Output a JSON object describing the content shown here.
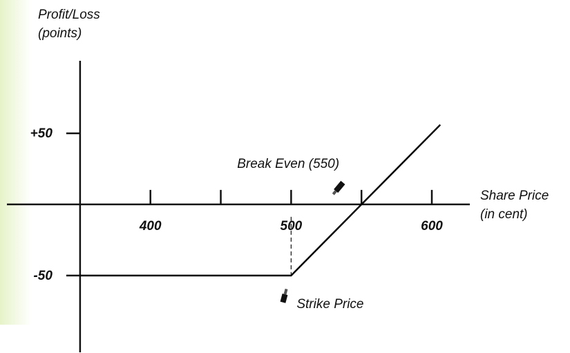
{
  "chart_data": {
    "type": "line",
    "ylabel": [
      "Profit/Loss",
      "(points)"
    ],
    "xlabel": [
      "Share Price",
      "(in cent)"
    ],
    "series": [
      {
        "color": "#000000",
        "x": [
          350,
          500,
          606
        ],
        "values": [
          -50,
          -50,
          56
        ]
      }
    ],
    "xlim": [
      298,
      627
    ],
    "ylim": [
      -104,
      101
    ],
    "xticks": [
      400,
      {
        "value": 450,
        "label": null
      },
      500,
      {
        "value": 550,
        "label": null
      },
      600
    ],
    "yticks": [
      {
        "value": 50,
        "label": "+50"
      },
      -50
    ],
    "annotations": [
      {
        "text": "Break Even (550)",
        "x": 550,
        "y": 0
      },
      {
        "text": "Strike Price",
        "x": 500,
        "y": -50
      }
    ]
  }
}
